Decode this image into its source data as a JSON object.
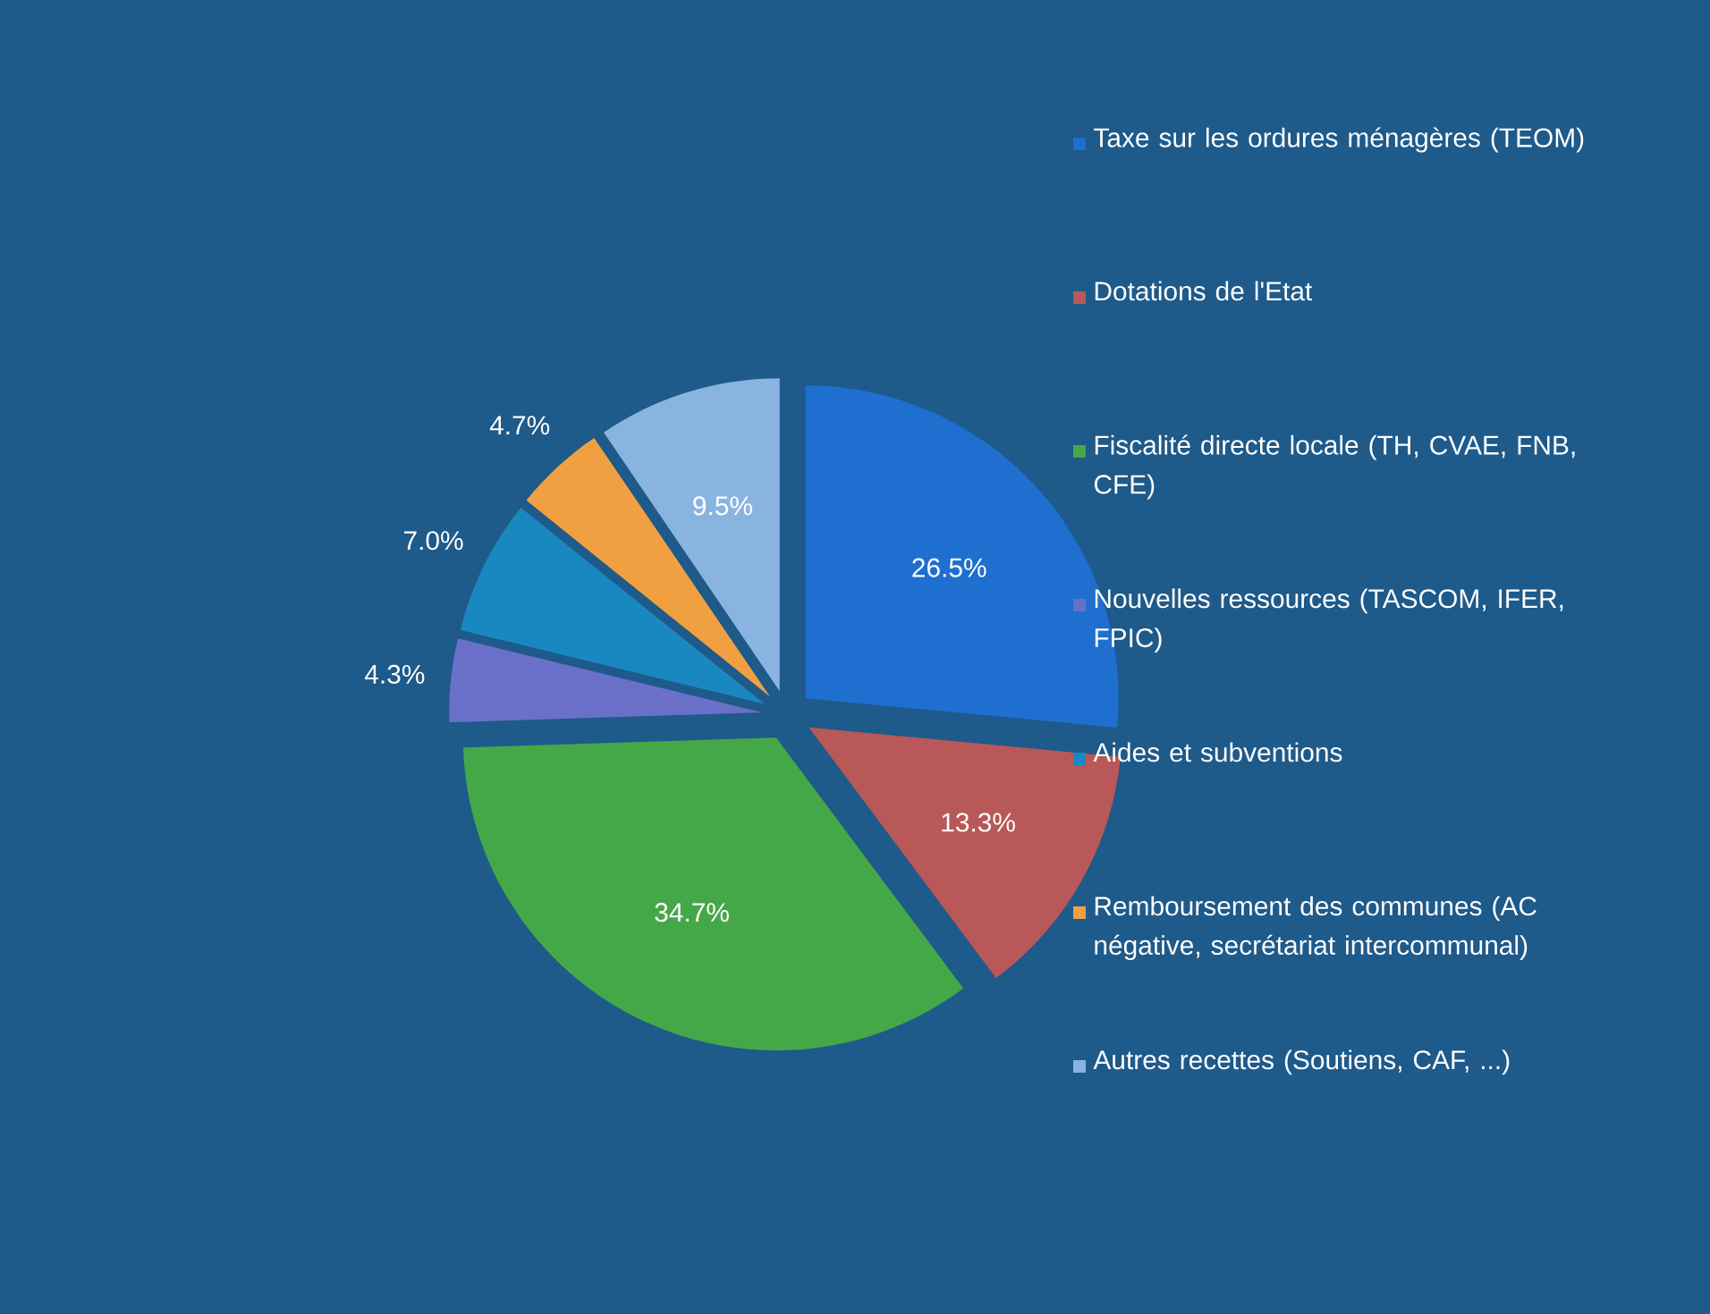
{
  "chart_data": {
    "type": "pie",
    "categories": [
      "Taxe sur les ordures ménagères (TEOM)",
      "Dotations de l'Etat",
      "Fiscalité directe locale (TH, CVAE, FNB, CFE)",
      "Nouvelles ressources (TASCOM, IFER, FPIC)",
      "Aides et subventions",
      "Remboursement des communes (AC négative, secrétariat intercommunal)",
      "Autres recettes (Soutiens, CAF, ...)"
    ],
    "values": [
      26.5,
      13.3,
      34.7,
      4.3,
      7.0,
      4.7,
      9.5
    ],
    "value_labels": [
      "26.5%",
      "13.3%",
      "34.7%",
      "4.3%",
      "7.0%",
      "4.7%",
      "9.5%"
    ],
    "colors": [
      "#1f6fd0",
      "#b85858",
      "#45a848",
      "#6a70c8",
      "#1a88c0",
      "#f0a040",
      "#8ab4e0"
    ],
    "legend": "right"
  }
}
